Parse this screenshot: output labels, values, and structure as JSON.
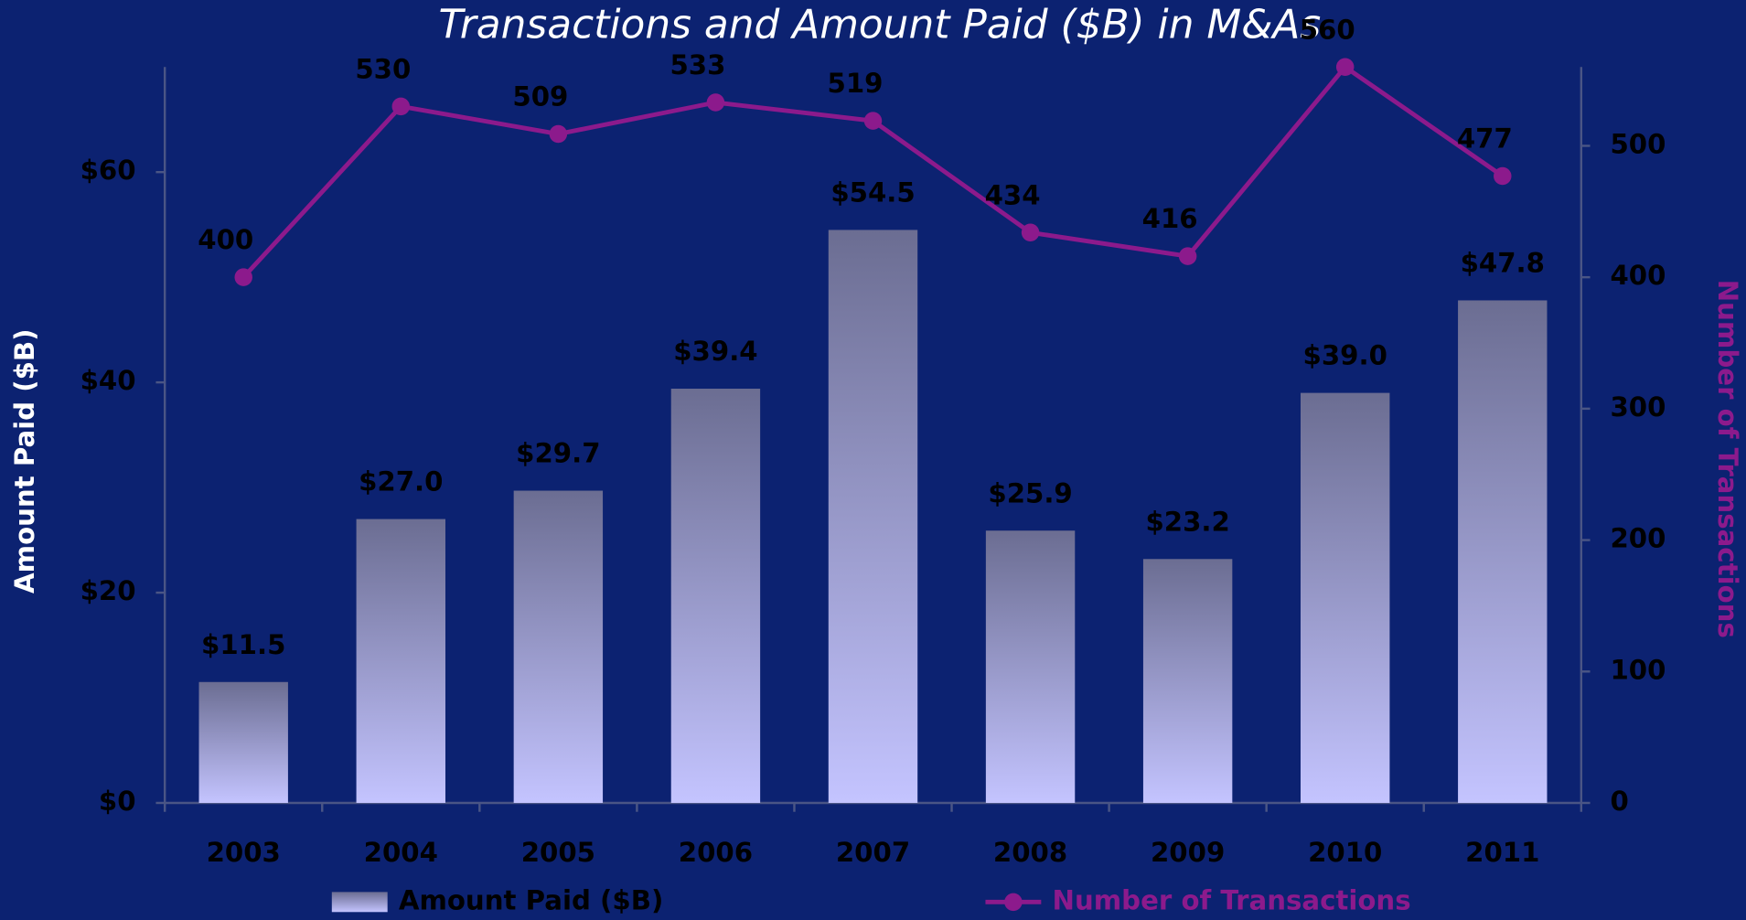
{
  "chart_data": {
    "type": "bar",
    "title": "Transactions and Amount Paid ($B) in M&As",
    "categories": [
      "2003",
      "2004",
      "2005",
      "2006",
      "2007",
      "2008",
      "2009",
      "2010",
      "2011"
    ],
    "ylabel": "Amount Paid ($B)",
    "y2label": "Number of Transactions",
    "ylim": [
      0,
      70
    ],
    "yticks": [
      {
        "value": 0,
        "label": "$0"
      },
      {
        "value": 20,
        "label": "$20"
      },
      {
        "value": 40,
        "label": "$40"
      },
      {
        "value": 60,
        "label": "$60"
      }
    ],
    "y2lim": [
      0,
      560
    ],
    "y2ticks": [
      0,
      100,
      200,
      300,
      400,
      500
    ],
    "legend": "bottom",
    "series": [
      {
        "name": "Amount Paid ($B)",
        "type": "bar",
        "color": "#c4c4ff",
        "values": [
          11.5,
          27.0,
          29.7,
          39.4,
          54.5,
          25.9,
          23.2,
          39.0,
          47.8
        ],
        "value_labels": [
          "$11.5",
          "$27.0",
          "$29.7",
          "$39.4",
          "$54.5",
          "$25.9",
          "$23.2",
          "$39.0",
          "$47.8"
        ]
      },
      {
        "name": "Number of Transactions",
        "type": "line",
        "axis": "y2",
        "color": "#8c1a8c",
        "values": [
          400,
          530,
          509,
          533,
          519,
          434,
          416,
          560,
          477
        ]
      }
    ]
  }
}
